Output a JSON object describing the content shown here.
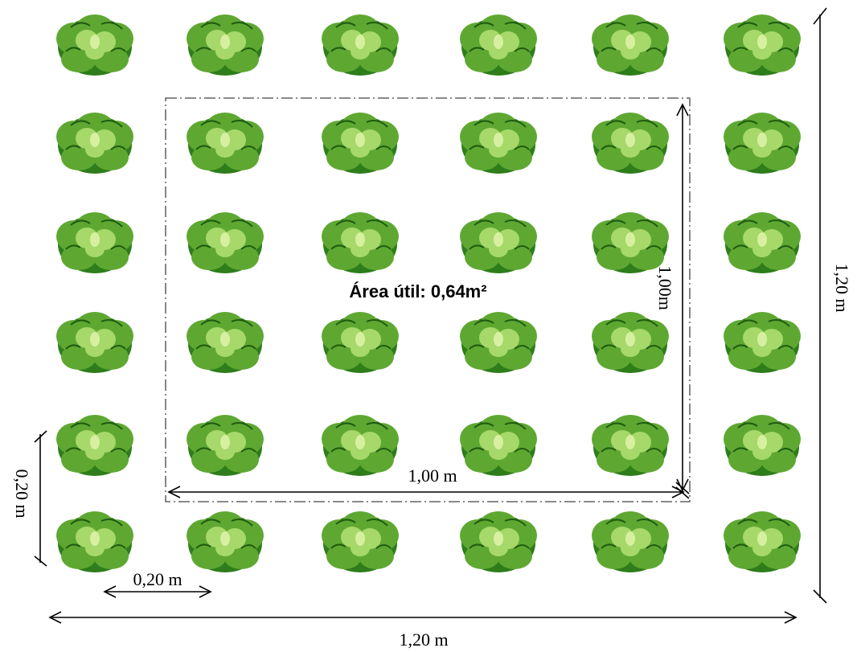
{
  "labels": {
    "useful_area": "Área útil: 0,64m²",
    "inner_width": "1,00 m",
    "inner_height": "1,00m",
    "outer_width": "1,20 m",
    "outer_height": "1,20 m",
    "row_spacing": "0,20 m",
    "column_spacing": "0,20 m"
  },
  "grid": {
    "rows": 6,
    "columns": 6
  },
  "colors": {
    "lettuce_dark": "#2e7d1a",
    "lettuce_mid": "#5ea832",
    "lettuce_light": "#a6d86a",
    "lettuce_highlight": "#d6f0a0"
  }
}
